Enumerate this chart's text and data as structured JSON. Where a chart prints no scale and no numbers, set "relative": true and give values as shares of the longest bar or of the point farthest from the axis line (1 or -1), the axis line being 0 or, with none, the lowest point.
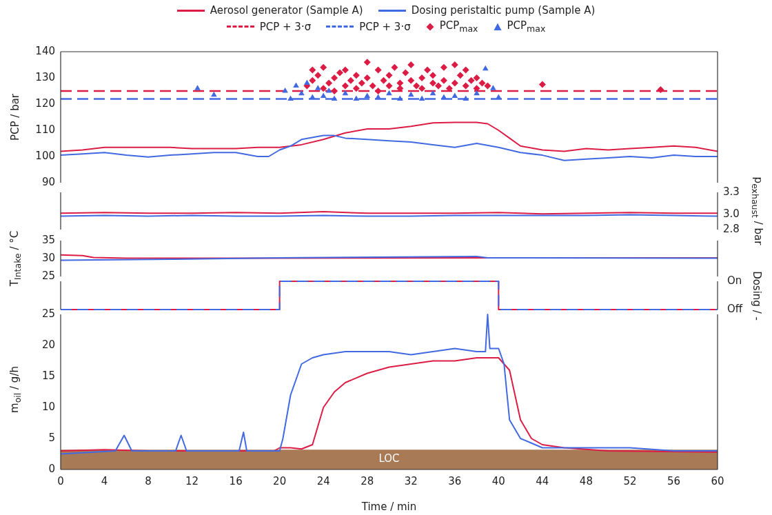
{
  "chart_data": [
    {
      "type": "line",
      "ylabel": "PCP / bar",
      "legend": "top",
      "tick_labels": "y",
      "xlim": [
        0,
        60
      ],
      "xticks": [
        0,
        4,
        8,
        12,
        16,
        20,
        24,
        28,
        32,
        36,
        40,
        44,
        48,
        52,
        56,
        60
      ],
      "ylim": [
        90,
        140
      ],
      "yticks": [
        90,
        100,
        110,
        120,
        130,
        140
      ],
      "ref_lines": [
        {
          "axis": "y",
          "value": 125,
          "label": "PCP + 3·σ",
          "color": "#dc1c44",
          "line_style": "dashed"
        },
        {
          "axis": "y",
          "value": 122,
          "label": "PCP + 3·σ",
          "color": "#4169e1",
          "line_style": "dashed"
        }
      ],
      "series": [
        {
          "name": "Aerosol generator (Sample A)",
          "color": "#dc1c44",
          "x": [
            0,
            2,
            4,
            6,
            8,
            10,
            12,
            14,
            16,
            18,
            20,
            22,
            24,
            26,
            28,
            30,
            32,
            34,
            36,
            38,
            39,
            40,
            41,
            42,
            44,
            46,
            48,
            50,
            52,
            54,
            56,
            58,
            60
          ],
          "values": [
            102,
            102.5,
            103.5,
            103.5,
            103.5,
            103.5,
            103,
            103,
            103,
            103.5,
            103.5,
            104.5,
            106.5,
            109,
            110.5,
            110.5,
            111.5,
            112.8,
            113,
            113,
            112.5,
            110,
            107,
            104,
            102.5,
            102,
            103,
            102.5,
            103,
            103.5,
            104,
            103.5,
            102
          ]
        },
        {
          "name": "Dosing peristaltic pump (Sample A)",
          "color": "#4169e1",
          "x": [
            0,
            2,
            4,
            6,
            8,
            10,
            12,
            14,
            16,
            18,
            19,
            20,
            21,
            22,
            24,
            25,
            26,
            28,
            30,
            32,
            34,
            36,
            38,
            40,
            42,
            44,
            46,
            48,
            50,
            52,
            54,
            56,
            58,
            60
          ],
          "values": [
            100.5,
            101,
            101.5,
            100.5,
            99.8,
            100.5,
            101,
            101.5,
            101.5,
            100,
            100,
            102.5,
            104,
            106.5,
            108,
            108,
            107,
            106.5,
            106,
            105.5,
            104.5,
            103.5,
            105,
            103.5,
            101.5,
            100.5,
            98.5,
            99,
            99.5,
            100,
            99.5,
            100.5,
            100,
            100
          ]
        },
        {
          "type": "scatter",
          "name": "PCP$_{max}$",
          "color": "#dc1c44",
          "marker": "diamond",
          "x": [
            22.5,
            23,
            23,
            23.5,
            24,
            24,
            24.5,
            25,
            25,
            25.5,
            26,
            26,
            26.5,
            27,
            27,
            27.5,
            28,
            28,
            28.5,
            29,
            29,
            29.5,
            30,
            30,
            30.5,
            31,
            31,
            31.5,
            32,
            32,
            32.5,
            33,
            33,
            33.5,
            34,
            34,
            34.5,
            35,
            35,
            35.5,
            36,
            36,
            36.5,
            37,
            37,
            37.5,
            38,
            38,
            38.5,
            39,
            44,
            54.8
          ],
          "values": [
            127,
            133,
            129,
            131,
            126,
            134,
            128,
            130,
            125,
            132,
            127,
            133,
            129,
            126,
            131,
            128,
            136,
            130,
            127,
            133,
            125,
            129,
            131,
            127,
            134,
            128,
            126,
            132,
            129,
            135,
            127,
            130,
            126,
            133,
            128,
            131,
            127,
            134,
            129,
            126,
            135,
            128,
            131,
            127,
            133,
            129,
            126,
            130,
            128,
            127,
            127.5,
            125.5
          ]
        },
        {
          "type": "scatter",
          "name": "PCP$_{max}$",
          "color": "#4169e1",
          "marker": "triangle",
          "x": [
            12.5,
            14,
            20.5,
            21,
            21.5,
            22,
            22.5,
            23,
            23.5,
            24,
            24.5,
            25,
            26,
            27,
            28,
            29,
            30,
            31,
            32,
            33,
            34,
            35,
            36,
            37,
            38,
            38.8,
            39.5,
            40
          ],
          "values": [
            126,
            123.5,
            125,
            122,
            127,
            124,
            128,
            122.5,
            126,
            123,
            125,
            122,
            124,
            122,
            123,
            122.5,
            124,
            122,
            123.5,
            122,
            124,
            122.5,
            123,
            122,
            124,
            133.5,
            126,
            122.5
          ]
        }
      ]
    },
    {
      "type": "line",
      "y2label": "p$_{exhaust}$ / bar",
      "tick_labels": "y",
      "xlim": [
        0,
        60
      ],
      "xticks": [
        0,
        4,
        8,
        12,
        16,
        20,
        24,
        28,
        32,
        36,
        40,
        44,
        48,
        52,
        56,
        60
      ],
      "y2lim": [
        2.8,
        3.3
      ],
      "y2ticks": [
        2.8,
        {
          "value": 3,
          "label": "3.0"
        },
        3.3
      ],
      "series": [
        {
          "axis": "y2",
          "color": "#dc1c44",
          "x": [
            0,
            4,
            8,
            12,
            16,
            20,
            24,
            28,
            32,
            36,
            40,
            44,
            48,
            52,
            56,
            60
          ],
          "values": [
            3.02,
            3.03,
            3.02,
            3.02,
            3.03,
            3.02,
            3.04,
            3.02,
            3.02,
            3.02,
            3.03,
            3.01,
            3.02,
            3.03,
            3.02,
            3.02
          ]
        },
        {
          "axis": "y2",
          "color": "#4169e1",
          "x": [
            0,
            4,
            8,
            12,
            16,
            20,
            24,
            28,
            32,
            36,
            40,
            44,
            48,
            52,
            56,
            60
          ],
          "values": [
            2.98,
            2.99,
            2.98,
            2.99,
            2.98,
            2.98,
            2.99,
            2.98,
            2.98,
            2.99,
            2.99,
            2.99,
            2.99,
            3.0,
            2.99,
            2.98
          ]
        }
      ]
    },
    {
      "type": "line",
      "ylabel": "T$_{Intake}$ / °C",
      "tick_labels": "y",
      "xlim": [
        0,
        60
      ],
      "xticks": [
        0,
        4,
        8,
        12,
        16,
        20,
        24,
        28,
        32,
        36,
        40,
        44,
        48,
        52,
        56,
        60
      ],
      "ylim": [
        25,
        35
      ],
      "yticks": [
        25,
        30,
        35
      ],
      "series": [
        {
          "color": "#dc1c44",
          "x": [
            0,
            2,
            3,
            6,
            20,
            40,
            60
          ],
          "values": [
            31,
            30.8,
            30.3,
            30.1,
            30.1,
            30.2,
            30.2
          ]
        },
        {
          "color": "#4169e1",
          "x": [
            0,
            10,
            20,
            38,
            39,
            60
          ],
          "values": [
            29.5,
            29.8,
            30.2,
            30.6,
            30.2,
            30.1
          ]
        }
      ]
    },
    {
      "type": "line",
      "y2label": "Dosing / -",
      "tick_labels": "y",
      "xlim": [
        0,
        60
      ],
      "xticks": [
        0,
        4,
        8,
        12,
        16,
        20,
        24,
        28,
        32,
        36,
        40,
        44,
        48,
        52,
        56,
        60
      ],
      "relative": true,
      "annotations": [
        "On",
        "Off"
      ],
      "series": [
        {
          "axis": "y2",
          "color": "#dc1c44",
          "x": [
            0,
            20,
            20,
            40,
            40,
            60
          ],
          "values": [
            0,
            0,
            1,
            1,
            0,
            0
          ]
        },
        {
          "axis": "y2",
          "color": "#4169e1",
          "line_style": "dashed",
          "x": [
            0,
            20,
            20,
            40,
            40,
            60
          ],
          "values": [
            0,
            0,
            1,
            1,
            0,
            0
          ]
        }
      ]
    },
    {
      "type": "line",
      "ylabel": "m$_{oil}$ / g/h",
      "xlabel": "Time / min",
      "xlim": [
        0,
        60
      ],
      "xticks": [
        0,
        4,
        8,
        12,
        16,
        20,
        24,
        28,
        32,
        36,
        40,
        44,
        48,
        52,
        56,
        60
      ],
      "ylim": [
        0,
        25
      ],
      "yticks": [
        0,
        5,
        10,
        15,
        20,
        25
      ],
      "bands": [
        {
          "axis": "y",
          "from": 0,
          "to": 3.2,
          "label": "LOC",
          "color": "#a97a56"
        }
      ],
      "series": [
        {
          "color": "#dc1c44",
          "x": [
            0,
            4,
            8,
            12,
            16,
            19.5,
            20,
            21,
            22,
            23,
            24,
            25,
            26,
            28,
            30,
            32,
            34,
            36,
            38,
            40,
            41,
            42,
            43,
            44,
            46,
            50,
            60
          ],
          "values": [
            3,
            3.2,
            3,
            3,
            3,
            3,
            3.5,
            3.5,
            3.3,
            4,
            10,
            12.5,
            14,
            15.5,
            16.5,
            17,
            17.5,
            17.5,
            18,
            18,
            16,
            8,
            5,
            4,
            3.5,
            3,
            2.8
          ]
        },
        {
          "color": "#4169e1",
          "x": [
            0,
            5,
            5.8,
            6.5,
            10.5,
            11,
            11.5,
            16.3,
            16.7,
            17,
            20,
            20.3,
            21,
            22,
            23,
            24,
            26,
            28,
            30,
            32,
            34,
            36,
            38,
            38.8,
            39,
            39.2,
            40,
            40.5,
            41,
            42,
            44,
            48,
            52,
            56,
            60
          ],
          "values": [
            2.5,
            3,
            5.5,
            3,
            3,
            5.5,
            3,
            3,
            6,
            3,
            3,
            5,
            12,
            17,
            18,
            18.5,
            19,
            19,
            19,
            18.5,
            19,
            19.5,
            19,
            19,
            25,
            19.5,
            19.5,
            17,
            8,
            5,
            3.5,
            3.5,
            3.5,
            3,
            3
          ]
        }
      ]
    }
  ]
}
